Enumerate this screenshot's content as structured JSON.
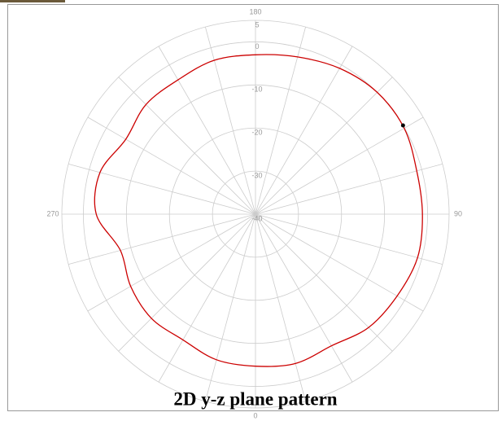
{
  "chart_data": {
    "type": "polar",
    "title": "2D y-z plane pattern",
    "theta": [
      0,
      15,
      30,
      45,
      60,
      75,
      90,
      105,
      120,
      135,
      150,
      165,
      180,
      195,
      210,
      225,
      240,
      255,
      270,
      285,
      300,
      315,
      330,
      345
    ],
    "series": [
      {
        "color": "#cc0000",
        "values": [
          -4.7,
          -4.1,
          -4.7,
          -2.8,
          -2,
          -1,
          -1.2,
          -1.2,
          -0.1,
          0,
          -0.9,
          -2.2,
          -3,
          -3,
          -4,
          -4,
          -5.2,
          -2.6,
          -3,
          -7.5,
          -6.5,
          -5.8,
          -6.3,
          -5
        ]
      }
    ],
    "marker": {
      "theta": 121,
      "value": 0,
      "color": "#000000"
    },
    "rlim": [
      -40,
      5
    ],
    "rticks": [
      5,
      0,
      -10,
      -20,
      -30,
      -40
    ],
    "thetaticks": [
      180,
      90,
      0,
      270
    ],
    "grid": true
  }
}
